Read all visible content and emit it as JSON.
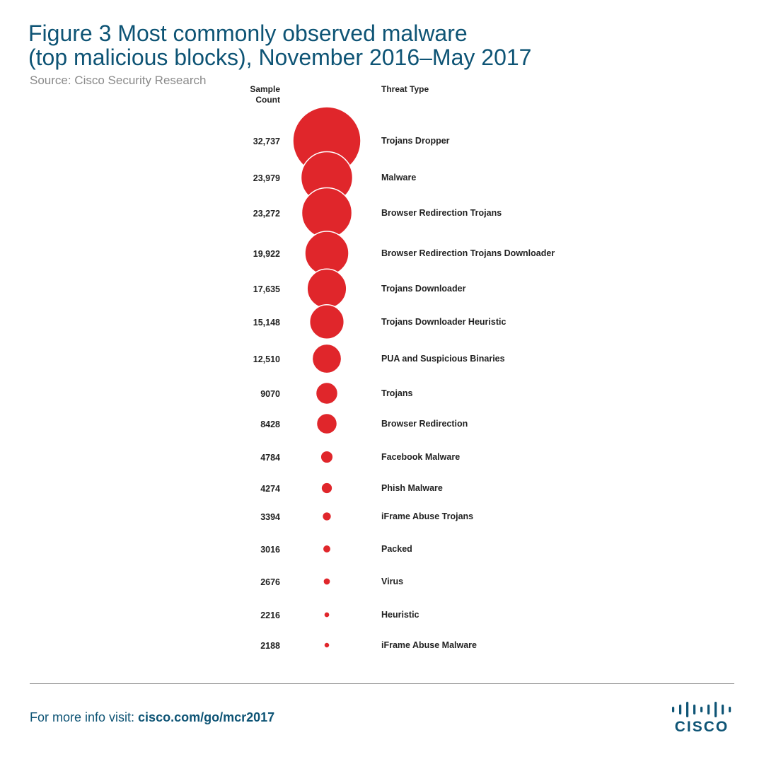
{
  "header": {
    "title_line1": "Figure 3  Most commonly observed malware",
    "title_line2": "(top malicious blocks), November 2016–May 2017",
    "source": "Source: Cisco Security Research"
  },
  "columns": {
    "count_line1": "Sample",
    "count_line2": "Count",
    "type": "Threat Type"
  },
  "chart_data": {
    "type": "bubble",
    "title": "Most commonly observed malware (top malicious blocks), November 2016–May 2017",
    "xlabel": "",
    "ylabel": "",
    "rows": [
      {
        "count_label": "32,737",
        "value": 32737,
        "label": "Trojans Dropper"
      },
      {
        "count_label": "23,979",
        "value": 23979,
        "label": "Malware"
      },
      {
        "count_label": "23,272",
        "value": 23272,
        "label": "Browser Redirection Trojans"
      },
      {
        "count_label": "19,922",
        "value": 19922,
        "label": "Browser Redirection Trojans Downloader"
      },
      {
        "count_label": "17,635",
        "value": 17635,
        "label": "Trojans Downloader"
      },
      {
        "count_label": "15,148",
        "value": 15148,
        "label": "Trojans Downloader Heuristic"
      },
      {
        "count_label": "12,510",
        "value": 12510,
        "label": "PUA and Suspicious Binaries"
      },
      {
        "count_label": "9070",
        "value": 9070,
        "label": "Trojans"
      },
      {
        "count_label": "8428",
        "value": 8428,
        "label": "Browser Redirection"
      },
      {
        "count_label": "4784",
        "value": 4784,
        "label": "Facebook Malware"
      },
      {
        "count_label": "4274",
        "value": 4274,
        "label": "Phish Malware"
      },
      {
        "count_label": "3394",
        "value": 3394,
        "label": "iFrame Abuse Trojans"
      },
      {
        "count_label": "3016",
        "value": 3016,
        "label": "Packed"
      },
      {
        "count_label": "2676",
        "value": 2676,
        "label": "Virus"
      },
      {
        "count_label": "2216",
        "value": 2216,
        "label": "Heuristic"
      },
      {
        "count_label": "2188",
        "value": 2188,
        "label": "iFrame Abuse Malware"
      }
    ],
    "bubble_color": "#e0262b"
  },
  "footer": {
    "prefix": "For more info visit: ",
    "link": "cisco.com/go/mcr2017"
  },
  "logo": {
    "icon": "cisco-bridge-logo-icon",
    "word": "CISCO"
  },
  "colors": {
    "brand_blue": "#0e5475",
    "bubble_red": "#e0262b",
    "source_gray": "#8a8a8a"
  }
}
